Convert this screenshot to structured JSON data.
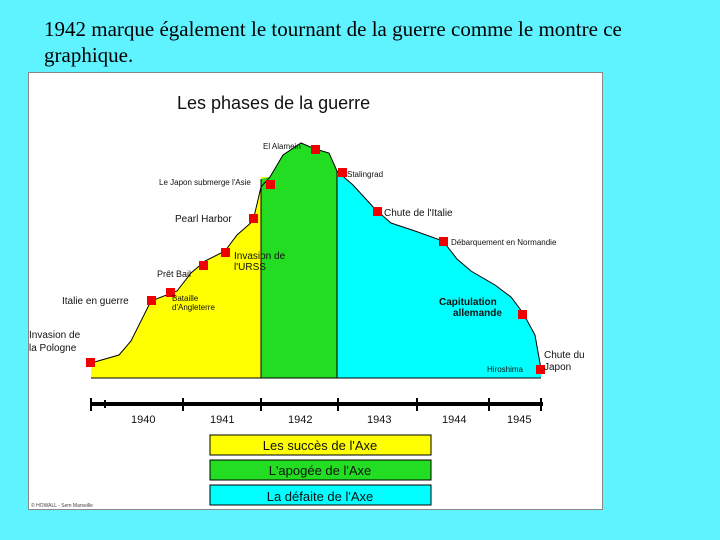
{
  "caption": "1942 marque également le tournant de la guerre comme le montre ce graphique.",
  "figure": {
    "title": "Les phases de la guerre",
    "events": [
      "El Alamein",
      "Le Japon submerge l'Asie",
      "Stalingrad",
      "Pearl Harbor",
      "Chute de l'Italie",
      "Débarquement en Normandie",
      "Invasion de l'URSS",
      "Prêt Bail",
      "Italie en guerre",
      "Bataille d'Angleterre",
      "Capitulation allemande",
      "Invasion de la Pologne",
      "Hiroshima",
      "Chute du Japon"
    ],
    "years": [
      "1940",
      "1941",
      "1942",
      "1943",
      "1944",
      "1945"
    ],
    "legend": [
      {
        "label": "Les succès de l'Axe",
        "color": "#ffff00"
      },
      {
        "label": "L'apogée de l'Axe",
        "color": "#22dd22"
      },
      {
        "label": "La défaite de l'Axe",
        "color": "#00ffff"
      }
    ],
    "credit": "© HOWALL - Sem Marseille"
  },
  "colors": {
    "background": "#5ff2ff",
    "marker": "#ee0000"
  }
}
